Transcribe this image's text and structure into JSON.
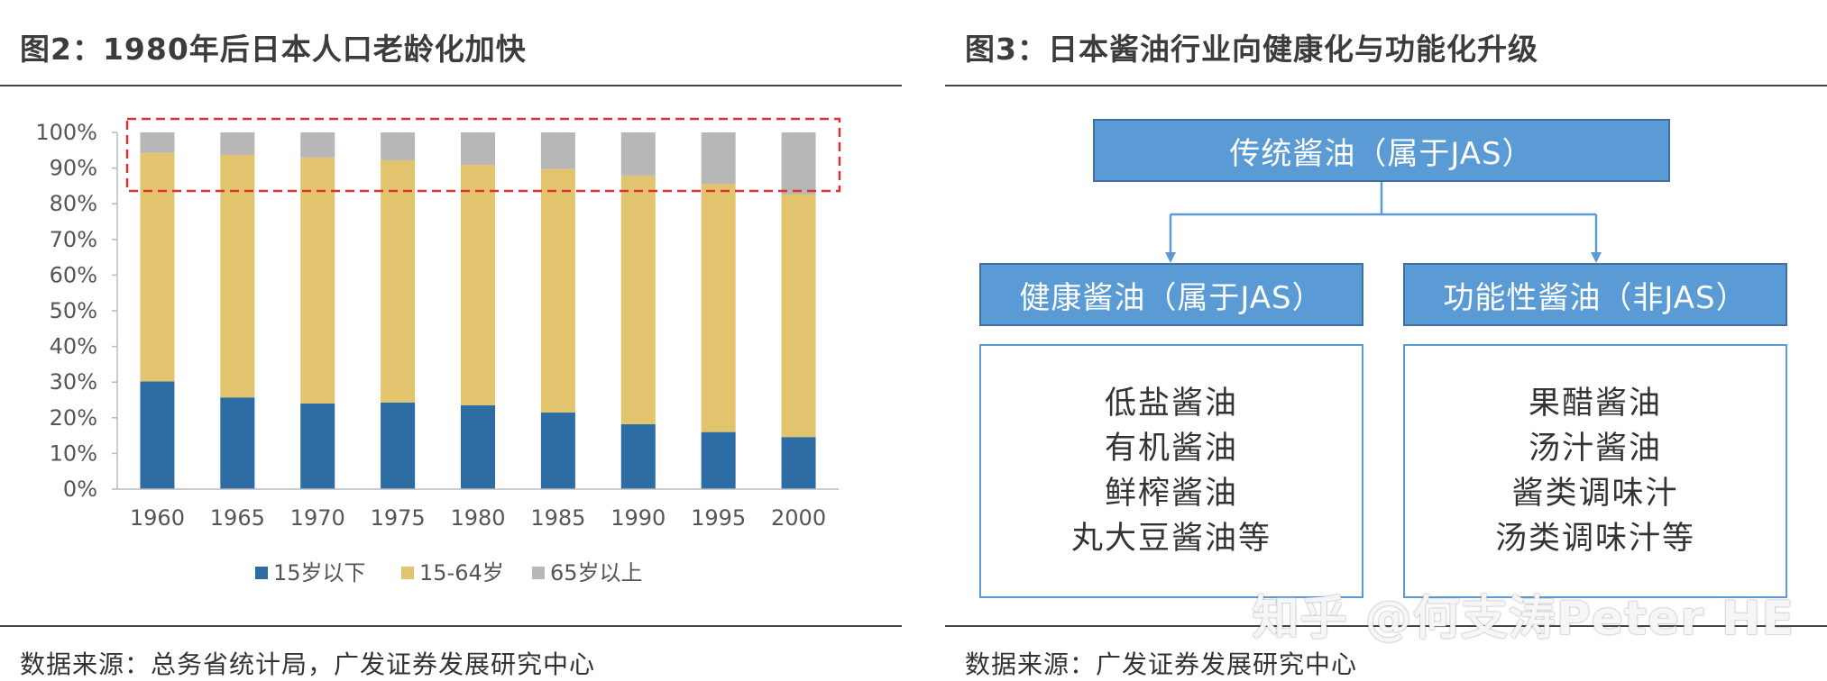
{
  "figure2": {
    "title": "图2：1980年后日本人口老龄化加快",
    "source": "数据来源：总务省统计局，广发证券发展研究中心"
  },
  "figure3": {
    "title": "图3：日本酱油行业向健康化与功能化升级",
    "source": "数据来源：广发证券发展研究中心",
    "top_box": "传统酱油（属于JAS）",
    "left_box": "健康酱油（属于JAS）",
    "right_box": "功能性酱油（非JAS）",
    "left_items": [
      "低盐酱油",
      "有机酱油",
      "鲜榨酱油",
      "丸大豆酱油等"
    ],
    "right_items": [
      "果醋酱油",
      "汤汁酱油",
      "酱类调味汁",
      "汤类调味汁等"
    ],
    "box_color": "#5b9bd5"
  },
  "watermark": "知乎 @何支涛Peter HE",
  "chart_data": {
    "type": "bar",
    "stacked": true,
    "percent": true,
    "categories": [
      "1960",
      "1965",
      "1970",
      "1975",
      "1980",
      "1985",
      "1990",
      "1995",
      "2000"
    ],
    "series": [
      {
        "name": "15岁以下",
        "color": "#2e6ca4",
        "values": [
          30.2,
          25.7,
          24.0,
          24.3,
          23.5,
          21.5,
          18.2,
          16.0,
          14.6
        ]
      },
      {
        "name": "15-64岁",
        "color": "#e3c46e",
        "values": [
          64.1,
          68.0,
          69.0,
          67.9,
          67.4,
          68.2,
          69.7,
          69.5,
          68.1
        ]
      },
      {
        "name": "65岁以上",
        "color": "#b7b7b7",
        "values": [
          5.7,
          6.3,
          7.0,
          7.8,
          9.1,
          10.3,
          12.1,
          14.5,
          17.3
        ]
      }
    ],
    "yticks": [
      "0%",
      "10%",
      "20%",
      "30%",
      "40%",
      "50%",
      "60%",
      "70%",
      "80%",
      "90%",
      "100%"
    ],
    "ylim": [
      0,
      100
    ],
    "grid": false,
    "legend_position": "bottom",
    "annotation": "red dashed box highlighting 80%-100% range"
  }
}
